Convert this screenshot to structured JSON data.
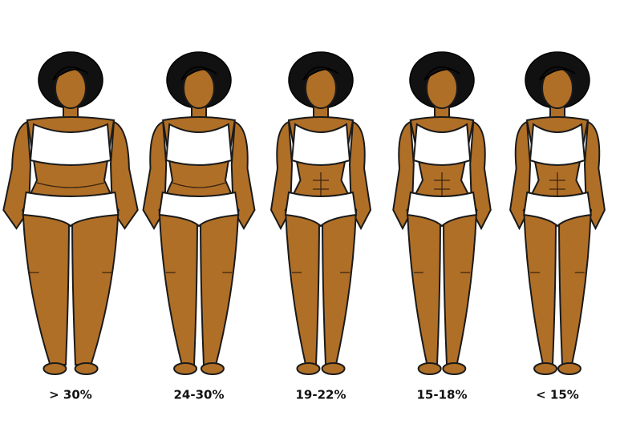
{
  "figures": [
    {
      "label": "> 30%"
    },
    {
      "label": "24-30%"
    },
    {
      "label": "19-22%"
    },
    {
      "label": "15-18%"
    },
    {
      "label": "< 15%"
    }
  ]
}
